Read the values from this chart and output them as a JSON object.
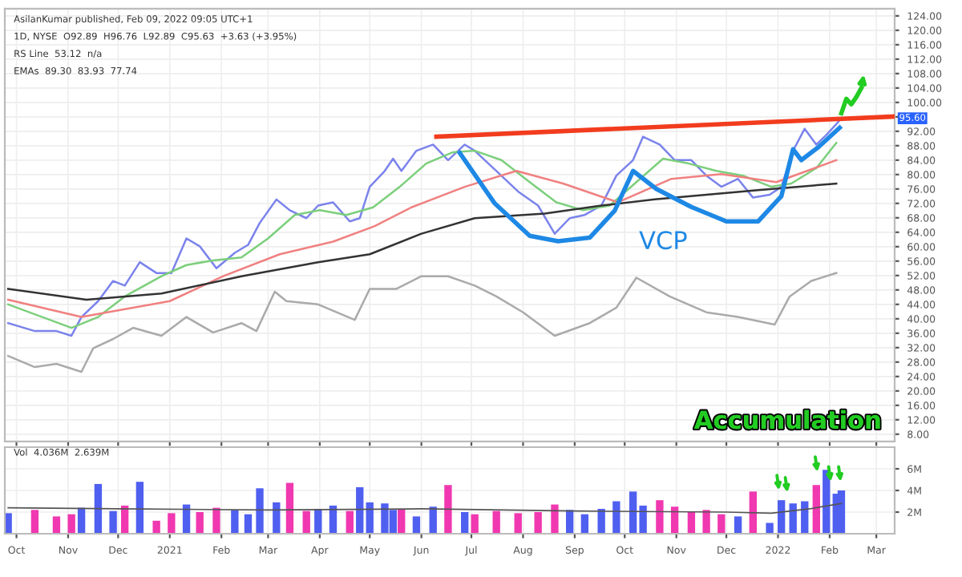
{
  "chart_data": [
    {
      "type": "line",
      "annotations": [
        "AsilanKumar published, Feb 09, 2022 09:05 UTC+1",
        "1D, NYSE  O92.89  H96.76  L92.89  C95.63  +3.63 (+3.95%)",
        "RS Line  53.12  n/a",
        "EMAs  89.30  83.93  77.74",
        "VCP",
        "Accumulation",
        "95.60"
      ],
      "xlim": [
        "2020-09-24",
        "2022-03-12"
      ],
      "ylim": [
        6,
        126
      ],
      "yticks": [
        {
          "value": 8,
          "label": "8.00"
        },
        {
          "value": 12,
          "label": "12.00"
        },
        {
          "value": 16,
          "label": "16.00"
        },
        {
          "value": 20,
          "label": "20.00"
        },
        {
          "value": 24,
          "label": "24.00"
        },
        {
          "value": 28,
          "label": "28.00"
        },
        {
          "value": 32,
          "label": "32.00"
        },
        {
          "value": 36,
          "label": "36.00"
        },
        {
          "value": 40,
          "label": "40.00"
        },
        {
          "value": 44,
          "label": "44.00"
        },
        {
          "value": 48,
          "label": "48.00"
        },
        {
          "value": 52,
          "label": "52.00"
        },
        {
          "value": 56,
          "label": "56.00"
        },
        {
          "value": 60,
          "label": "60.00"
        },
        {
          "value": 64,
          "label": "64.00"
        },
        {
          "value": 68,
          "label": "68.00"
        },
        {
          "value": 72,
          "label": "72.00"
        },
        {
          "value": 76,
          "label": "76.00"
        },
        {
          "value": 80,
          "label": "80.00"
        },
        {
          "value": 84,
          "label": "84.00"
        },
        {
          "value": 88,
          "label": "88.00"
        },
        {
          "value": 92,
          "label": "92.00"
        },
        {
          "value": 96,
          "label": null
        },
        {
          "value": 100,
          "label": "100.00"
        },
        {
          "value": 104,
          "label": "104.00"
        },
        {
          "value": 108,
          "label": "108.00"
        },
        {
          "value": 112,
          "label": "112.00"
        },
        {
          "value": 116,
          "label": "116.00"
        },
        {
          "value": 120,
          "label": "120.00"
        },
        {
          "value": 124,
          "label": "124.00"
        }
      ],
      "xticks": [
        {
          "value": "2020-10-01",
          "label": null
        },
        {
          "value": "2020-11-01",
          "label": null
        },
        {
          "value": "2020-12-01",
          "label": null
        },
        {
          "value": "2021-01-01",
          "label": null
        },
        {
          "value": "2021-02-01",
          "label": null
        },
        {
          "value": "2021-03-01",
          "label": null
        },
        {
          "value": "2021-04-01",
          "label": null
        },
        {
          "value": "2021-05-01",
          "label": null
        },
        {
          "value": "2021-06-01",
          "label": null
        },
        {
          "value": "2021-07-01",
          "label": null
        },
        {
          "value": "2021-08-01",
          "label": null
        },
        {
          "value": "2021-09-01",
          "label": null
        },
        {
          "value": "2021-10-01",
          "label": null
        },
        {
          "value": "2021-11-01",
          "label": null
        },
        {
          "value": "2021-12-01",
          "label": null
        },
        {
          "value": "2022-01-01",
          "label": null
        },
        {
          "value": "2022-02-01",
          "label": null
        },
        {
          "value": "2022-03-01",
          "label": null
        }
      ],
      "tick_labels": "y",
      "grid": true,
      "x": [
        "2020-09-26",
        "2020-10-12",
        "2020-10-25",
        "2020-11-03",
        "2020-11-09",
        "2020-11-19",
        "2020-11-28",
        "2020-12-05",
        "2020-12-14",
        "2020-12-24",
        "2021-01-02",
        "2021-01-11",
        "2021-01-19",
        "2021-01-29",
        "2021-02-09",
        "2021-02-17",
        "2021-02-24",
        "2021-03-06",
        "2021-03-14",
        "2021-03-24",
        "2021-03-31",
        "2021-04-09",
        "2021-04-19",
        "2021-04-25",
        "2021-05-01",
        "2021-05-10",
        "2021-05-15",
        "2021-05-20",
        "2021-05-29",
        "2021-06-08",
        "2021-06-17",
        "2021-06-27",
        "2021-07-03",
        "2021-07-16",
        "2021-07-29",
        "2021-08-10",
        "2021-08-20",
        "2021-08-29",
        "2021-09-07",
        "2021-09-17",
        "2021-09-26",
        "2021-10-06",
        "2021-10-12",
        "2021-10-22",
        "2021-10-31",
        "2021-11-10",
        "2021-11-19",
        "2021-11-28",
        "2021-12-08",
        "2021-12-17",
        "2021-12-27",
        "2022-01-03",
        "2022-01-10",
        "2022-01-17",
        "2022-01-24",
        "2022-01-30",
        "2022-02-05",
        "2022-02-08"
      ],
      "series": [
        {
          "color": "#7b83eb",
          "values": [
            38.8,
            36.6,
            36.6,
            35.3,
            40.5,
            44.9,
            50.5,
            49.2,
            55.7,
            52.7,
            52.7,
            62.3,
            60.1,
            54.0,
            58.3,
            60.5,
            66.6,
            73.1,
            70.1,
            67.9,
            71.4,
            72.3,
            67.0,
            67.9,
            76.6,
            81.0,
            84.4,
            81.0,
            86.6,
            88.3,
            84.0,
            88.3,
            86.6,
            81.0,
            75.3,
            71.4,
            63.6,
            67.9,
            68.8,
            71.4,
            79.7,
            84.0,
            90.5,
            88.3,
            84.0,
            84.0,
            79.7,
            76.6,
            78.8,
            73.6,
            74.4,
            76.6,
            86.6,
            92.7,
            88.3,
            91.0,
            94.0,
            95.6
          ]
        },
        {
          "color": "#7ccf7c",
          "x": [
            "2020-09-26",
            "2020-11-03",
            "2020-11-19",
            "2020-12-05",
            "2020-12-27",
            "2021-01-11",
            "2021-01-27",
            "2021-02-13",
            "2021-03-01",
            "2021-03-17",
            "2021-04-01",
            "2021-04-17",
            "2021-05-03",
            "2021-05-19",
            "2021-06-04",
            "2021-06-20",
            "2021-07-03",
            "2021-07-19",
            "2021-08-05",
            "2021-08-21",
            "2021-09-06",
            "2021-09-22",
            "2021-10-08",
            "2021-10-24",
            "2021-11-08",
            "2021-11-25",
            "2021-12-11",
            "2021-12-28",
            "2022-01-09",
            "2022-01-24",
            "2022-02-05"
          ],
          "values": [
            44.0,
            37.5,
            40.5,
            46.2,
            51.8,
            54.9,
            56.2,
            57.0,
            62.3,
            68.8,
            70.1,
            68.8,
            70.9,
            76.6,
            83.1,
            86.2,
            86.6,
            84.0,
            77.9,
            72.3,
            70.1,
            71.4,
            77.9,
            84.4,
            83.1,
            81.0,
            79.7,
            76.6,
            77.5,
            81.8,
            88.8
          ]
        },
        {
          "color": "#f08080",
          "x": [
            "2020-09-26",
            "2020-11-09",
            "2021-01-01",
            "2021-02-02",
            "2021-03-08",
            "2021-04-09",
            "2021-05-04",
            "2021-05-26",
            "2021-06-27",
            "2021-07-28",
            "2021-08-25",
            "2021-09-27",
            "2021-10-29",
            "2021-11-28",
            "2021-12-31",
            "2022-02-05"
          ],
          "values": [
            45.3,
            40.5,
            44.9,
            51.8,
            57.9,
            61.4,
            65.7,
            70.9,
            76.6,
            81.0,
            77.5,
            72.3,
            78.8,
            80.1,
            77.9,
            84.0
          ]
        },
        {
          "color": "#333333",
          "x": [
            "2020-09-26",
            "2020-11-12",
            "2020-12-27",
            "2021-02-13",
            "2021-03-31",
            "2021-05-01",
            "2021-06-01",
            "2021-07-03",
            "2021-08-14",
            "2021-09-17",
            "2021-10-19",
            "2021-11-19",
            "2021-12-20",
            "2022-02-05"
          ],
          "values": [
            48.3,
            45.3,
            47.0,
            51.8,
            55.7,
            57.9,
            63.6,
            67.9,
            69.2,
            71.4,
            73.1,
            74.4,
            75.7,
            77.5
          ]
        },
        {
          "color": "#aaaaaa",
          "x": [
            "2020-09-26",
            "2020-10-12",
            "2020-10-25",
            "2020-11-09",
            "2020-11-16",
            "2020-11-28",
            "2020-12-10",
            "2020-12-27",
            "2021-01-11",
            "2021-01-27",
            "2021-02-13",
            "2021-02-22",
            "2021-03-05",
            "2021-03-12",
            "2021-03-31",
            "2021-04-22",
            "2021-05-01",
            "2021-05-17",
            "2021-06-01",
            "2021-06-17",
            "2021-07-03",
            "2021-07-16",
            "2021-08-01",
            "2021-08-20",
            "2021-09-10",
            "2021-09-26",
            "2021-10-08",
            "2021-10-28",
            "2021-11-19",
            "2021-12-08",
            "2021-12-30",
            "2022-01-08",
            "2022-01-21",
            "2022-02-05"
          ],
          "values": [
            29.7,
            26.6,
            27.5,
            25.3,
            31.8,
            34.4,
            37.5,
            35.3,
            40.5,
            36.2,
            38.8,
            36.6,
            47.5,
            44.9,
            44.0,
            39.7,
            48.3,
            48.3,
            51.8,
            51.8,
            49.2,
            46.2,
            41.8,
            35.3,
            38.8,
            43.1,
            51.4,
            46.2,
            41.8,
            40.5,
            38.4,
            46.2,
            50.5,
            52.7
          ]
        },
        {
          "color": "#f23c1e",
          "x": [
            "2021-06-10",
            "2022-03-12"
          ],
          "values": [
            90.5,
            96.1
          ]
        },
        {
          "color": "#1e88e5",
          "x": [
            "2021-06-24",
            "2021-07-15",
            "2021-08-05",
            "2021-08-22",
            "2021-09-10",
            "2021-09-25",
            "2021-10-06",
            "2021-10-20",
            "2021-11-10",
            "2021-12-01",
            "2021-12-20",
            "2022-01-03",
            "2022-01-10",
            "2022-01-15",
            "2022-01-25",
            "2022-02-07"
          ],
          "values": [
            86,
            72,
            63,
            61.5,
            62.5,
            70,
            81,
            76,
            71,
            67,
            67,
            74,
            87,
            84,
            87.5,
            93
          ]
        },
        {
          "color": "#22cc22",
          "x": [
            "2022-02-08",
            "2022-02-11",
            "2022-02-14",
            "2022-02-17",
            "2022-02-20"
          ],
          "values": [
            97,
            101,
            99.5,
            101.5,
            104
          ]
        }
      ]
    },
    {
      "type": "bar",
      "annotations": [
        "Vol  4.036M  2.639M"
      ],
      "xlim": [
        "2020-09-24",
        "2022-03-12"
      ],
      "ylim": [
        0,
        8
      ],
      "yticks": [
        {
          "value": 2,
          "label": "2M"
        },
        {
          "value": 4,
          "label": "4M"
        },
        {
          "value": 6,
          "label": "6M"
        }
      ],
      "xticks": [
        {
          "value": "2020-10-01",
          "label": "Oct"
        },
        {
          "value": "2020-11-01",
          "label": "Nov"
        },
        {
          "value": "2020-12-01",
          "label": "Dec"
        },
        {
          "value": "2021-01-01",
          "label": "2021"
        },
        {
          "value": "2021-02-01",
          "label": "Feb"
        },
        {
          "value": "2021-03-01",
          "label": "Mar"
        },
        {
          "value": "2021-04-01",
          "label": "Apr"
        },
        {
          "value": "2021-05-01",
          "label": "May"
        },
        {
          "value": "2021-06-01",
          "label": "Jun"
        },
        {
          "value": "2021-07-01",
          "label": "Jul"
        },
        {
          "value": "2021-08-01",
          "label": "Aug"
        },
        {
          "value": "2021-09-01",
          "label": "Sep"
        },
        {
          "value": "2021-10-01",
          "label": "Oct"
        },
        {
          "value": "2021-11-01",
          "label": "Nov"
        },
        {
          "value": "2021-12-01",
          "label": "Dec"
        },
        {
          "value": "2022-01-01",
          "label": "2022"
        },
        {
          "value": "2022-02-01",
          "label": "Feb"
        },
        {
          "value": "2022-03-01",
          "label": "Mar"
        }
      ],
      "grid": true,
      "x": [
        "2020-09-26",
        "2020-10-12",
        "2020-10-25",
        "2020-11-03",
        "2020-11-09",
        "2020-11-19",
        "2020-11-28",
        "2020-12-05",
        "2020-12-14",
        "2020-12-24",
        "2021-01-02",
        "2021-01-11",
        "2021-01-19",
        "2021-01-29",
        "2021-02-09",
        "2021-02-17",
        "2021-02-24",
        "2021-03-06",
        "2021-03-14",
        "2021-03-24",
        "2021-03-31",
        "2021-04-09",
        "2021-04-19",
        "2021-04-25",
        "2021-05-01",
        "2021-05-10",
        "2021-05-15",
        "2021-05-20",
        "2021-05-29",
        "2021-06-08",
        "2021-06-17",
        "2021-06-27",
        "2021-07-03",
        "2021-07-16",
        "2021-07-29",
        "2021-08-10",
        "2021-08-20",
        "2021-08-29",
        "2021-09-07",
        "2021-09-17",
        "2021-09-26",
        "2021-10-06",
        "2021-10-12",
        "2021-10-22",
        "2021-10-31",
        "2021-11-10",
        "2021-11-19",
        "2021-11-28",
        "2021-12-08",
        "2021-12-17",
        "2021-12-27",
        "2022-01-03",
        "2022-01-10",
        "2022-01-17",
        "2022-01-24",
        "2022-01-30",
        "2022-02-05",
        "2022-02-08"
      ],
      "series": [
        {
          "values": [
            1.9,
            2.2,
            1.6,
            1.8,
            2.4,
            4.6,
            2.1,
            2.6,
            4.8,
            1.2,
            1.9,
            2.7,
            2.0,
            2.4,
            2.2,
            1.8,
            4.2,
            2.9,
            4.7,
            2.1,
            2.3,
            2.6,
            2.1,
            4.3,
            2.9,
            2.8,
            2.2,
            2.3,
            1.6,
            2.5,
            4.5,
            2.0,
            1.8,
            2.1,
            1.9,
            2.0,
            2.7,
            2.2,
            1.8,
            2.3,
            3.0,
            3.9,
            2.6,
            3.1,
            2.5,
            2.0,
            2.2,
            1.8,
            1.6,
            3.9,
            1.0,
            3.1,
            2.8,
            3.0,
            4.5,
            5.9,
            3.7,
            4.0
          ],
          "colors": [
            "#4f5ff0",
            "#f038b0",
            "#f038b0",
            "#f038b0",
            "#4f5ff0",
            "#4f5ff0",
            "#4f5ff0",
            "#f038b0",
            "#4f5ff0",
            "#f038b0",
            "#f038b0",
            "#4f5ff0",
            "#f038b0",
            "#f038b0",
            "#4f5ff0",
            "#4f5ff0",
            "#4f5ff0",
            "#4f5ff0",
            "#f038b0",
            "#f038b0",
            "#4f5ff0",
            "#4f5ff0",
            "#f038b0",
            "#4f5ff0",
            "#4f5ff0",
            "#4f5ff0",
            "#4f5ff0",
            "#f038b0",
            "#4f5ff0",
            "#4f5ff0",
            "#f038b0",
            "#4f5ff0",
            "#f038b0",
            "#f038b0",
            "#f038b0",
            "#f038b0",
            "#f038b0",
            "#4f5ff0",
            "#4f5ff0",
            "#4f5ff0",
            "#4f5ff0",
            "#4f5ff0",
            "#4f5ff0",
            "#f038b0",
            "#f038b0",
            "#f038b0",
            "#f038b0",
            "#f038b0",
            "#4f5ff0",
            "#f038b0",
            "#4f5ff0",
            "#4f5ff0",
            "#4f5ff0",
            "#4f5ff0",
            "#f038b0",
            "#4f5ff0",
            "#4f5ff0",
            "#4f5ff0"
          ]
        },
        {
          "type": "line",
          "color": "#555555",
          "x": [
            "2020-09-26",
            "2020-12-01",
            "2021-03-01",
            "2021-06-01",
            "2021-09-01",
            "2021-12-01",
            "2021-12-28",
            "2022-01-20",
            "2022-02-08"
          ],
          "values": [
            2.4,
            2.3,
            2.2,
            2.3,
            2.1,
            2.0,
            1.9,
            2.3,
            2.8
          ]
        }
      ]
    }
  ]
}
